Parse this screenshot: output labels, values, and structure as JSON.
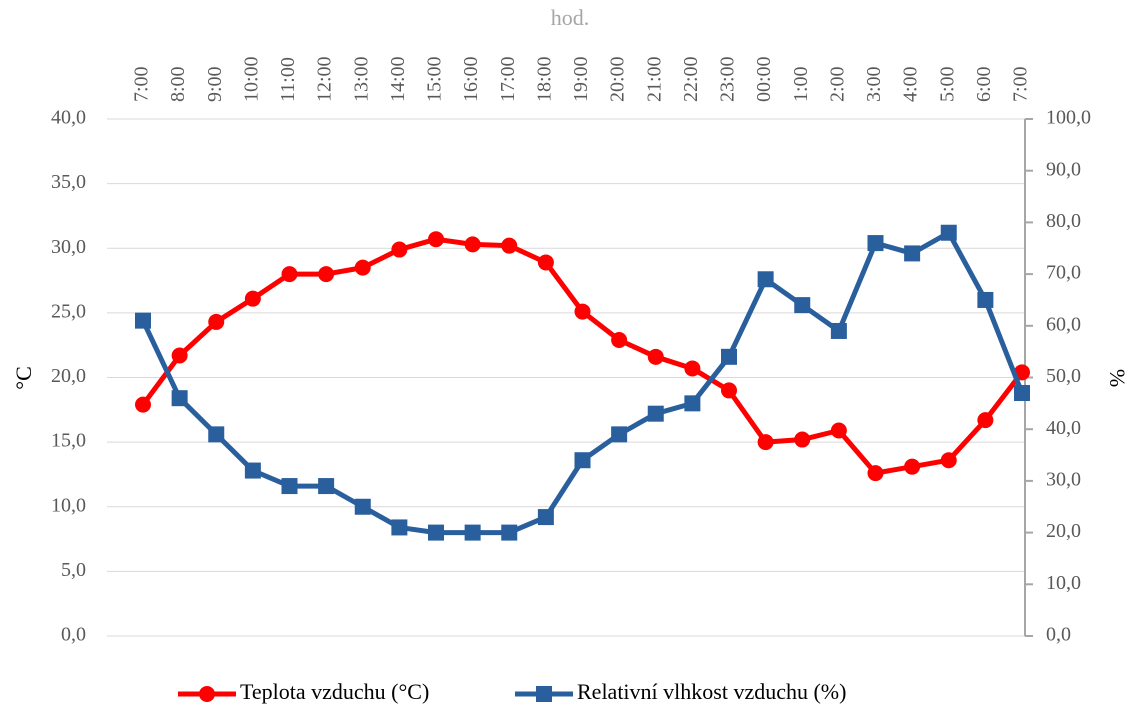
{
  "chart_data": {
    "type": "line",
    "x_label": "hod.",
    "y_label": "°C",
    "y2_label": "%",
    "categories": [
      "7:00",
      "8:00",
      "9:00",
      "10:00",
      "11:00",
      "12:00",
      "13:00",
      "14:00",
      "15:00",
      "16:00",
      "17:00",
      "18:00",
      "19:00",
      "20:00",
      "21:00",
      "22:00",
      "23:00",
      "00:00",
      "1:00",
      "2:00",
      "3:00",
      "4:00",
      "5:00",
      "6:00",
      "7:00"
    ],
    "series": [
      {
        "name": "Teplota vzduchu (°C)",
        "color": "#ff0000",
        "marker": "circle",
        "values": [
          17.9,
          21.7,
          24.3,
          26.1,
          28.0,
          28.0,
          28.5,
          29.9,
          30.7,
          30.3,
          30.2,
          28.9,
          25.1,
          22.9,
          21.6,
          20.7,
          19.0,
          15.0,
          15.2,
          15.9,
          12.6,
          13.1,
          13.6,
          16.7,
          20.4
        ]
      },
      {
        "name": "Relativní vlhkost vzduchu (%)",
        "color": "#2a5f9e",
        "marker": "square",
        "axis": "y2",
        "values": [
          61,
          46,
          39,
          32,
          29,
          29,
          25,
          21,
          20,
          20,
          20,
          23,
          34,
          39,
          43,
          45,
          54,
          69,
          64,
          59,
          76,
          74,
          78,
          65,
          47
        ]
      }
    ],
    "ylim": [
      0,
      40
    ],
    "yticks": [
      {
        "value": 0,
        "label": "0,0"
      },
      {
        "value": 5,
        "label": "5,0"
      },
      {
        "value": 10,
        "label": "10,0"
      },
      {
        "value": 15,
        "label": "15,0"
      },
      {
        "value": 20,
        "label": "20,0"
      },
      {
        "value": 25,
        "label": "25,0"
      },
      {
        "value": 30,
        "label": "30,0"
      },
      {
        "value": 35,
        "label": "35,0"
      },
      {
        "value": 40,
        "label": "40,0"
      }
    ],
    "y2lim": [
      0,
      100
    ],
    "y2ticks": [
      {
        "value": 0,
        "label": "0,0"
      },
      {
        "value": 10,
        "label": "10,0"
      },
      {
        "value": 20,
        "label": "20,0"
      },
      {
        "value": 30,
        "label": "30,0"
      },
      {
        "value": 40,
        "label": "40,0"
      },
      {
        "value": 50,
        "label": "50,0"
      },
      {
        "value": 60,
        "label": "60,0"
      },
      {
        "value": 70,
        "label": "70,0"
      },
      {
        "value": 80,
        "label": "80,0"
      },
      {
        "value": 90,
        "label": "90,0"
      },
      {
        "value": 100,
        "label": "100,0"
      }
    ],
    "grid": true,
    "legend": "bottom"
  }
}
